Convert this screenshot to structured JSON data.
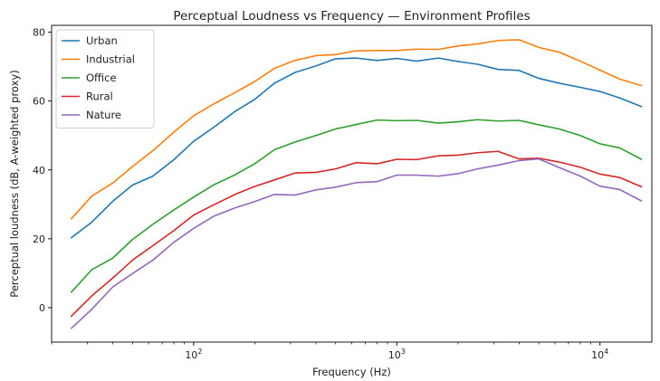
{
  "chart_data": {
    "type": "line",
    "title": "Perceptual Loudness vs Frequency — Environment Profiles",
    "xlabel": "Frequency (Hz)",
    "ylabel": "Perceptual loudness (dB, A-weighted proxy)",
    "xscale": "log",
    "xlim": [
      20,
      18000
    ],
    "ylim": [
      -10,
      82
    ],
    "x_ticks": [
      100,
      1000,
      10000
    ],
    "x_tick_labels": [
      {
        "base": "10",
        "exp": "2"
      },
      {
        "base": "10",
        "exp": "3"
      },
      {
        "base": "10",
        "exp": "4"
      }
    ],
    "y_ticks": [
      0,
      20,
      40,
      60,
      80
    ],
    "y_tick_labels": [
      "0",
      "20",
      "40",
      "60",
      "80"
    ],
    "grid": false,
    "legend_position": "top-left",
    "x": [
      25,
      31.5,
      40,
      50,
      63,
      80,
      100,
      125,
      160,
      200,
      250,
      315,
      400,
      500,
      630,
      800,
      1000,
      1250,
      1600,
      2000,
      2500,
      3150,
      4000,
      5000,
      6300,
      8000,
      10000,
      12500,
      16000
    ],
    "series": [
      {
        "name": "Urban",
        "color": "#1f77b4",
        "values": [
          20.3,
          24.8,
          30.9,
          35.6,
          38.2,
          43.0,
          48.3,
          52.3,
          57.0,
          60.5,
          65.2,
          68.3,
          70.2,
          72.3,
          72.5,
          71.8,
          72.4,
          71.6,
          72.5,
          71.5,
          70.7,
          69.2,
          68.9,
          66.6,
          65.2,
          64.0,
          62.8,
          60.9,
          58.4
        ]
      },
      {
        "name": "Industrial",
        "color": "#ff7f0e",
        "values": [
          25.8,
          32.4,
          36.2,
          41.0,
          45.6,
          51.0,
          55.7,
          59.1,
          62.5,
          65.7,
          69.5,
          71.8,
          73.2,
          73.5,
          74.6,
          74.7,
          74.7,
          75.1,
          75.0,
          76.0,
          76.6,
          77.6,
          77.8,
          75.6,
          74.2,
          71.6,
          69.0,
          66.4,
          64.5
        ]
      },
      {
        "name": "Office",
        "color": "#2ca02c",
        "values": [
          4.5,
          11.0,
          14.4,
          19.8,
          24.2,
          28.4,
          32.1,
          35.6,
          38.6,
          41.8,
          45.9,
          48.1,
          50.0,
          51.9,
          53.2,
          54.5,
          54.3,
          54.4,
          53.6,
          54.0,
          54.6,
          54.2,
          54.4,
          53.1,
          51.9,
          50.0,
          47.6,
          46.4,
          43.1
        ]
      },
      {
        "name": "Rural",
        "color": "#d62728",
        "values": [
          -2.5,
          3.4,
          8.6,
          13.8,
          18.0,
          22.4,
          26.9,
          29.8,
          32.9,
          35.2,
          37.1,
          39.1,
          39.3,
          40.3,
          42.1,
          41.8,
          43.1,
          43.0,
          44.1,
          44.3,
          45.0,
          45.4,
          43.2,
          43.4,
          42.3,
          40.8,
          38.8,
          37.8,
          35.1
        ]
      },
      {
        "name": "Nature",
        "color": "#9467bd",
        "values": [
          -6.0,
          -0.5,
          6.0,
          9.9,
          13.8,
          19.0,
          23.0,
          26.5,
          29.0,
          30.8,
          32.9,
          32.7,
          34.2,
          35.0,
          36.3,
          36.6,
          38.5,
          38.5,
          38.2,
          38.9,
          40.3,
          41.4,
          42.7,
          43.2,
          40.7,
          38.2,
          35.3,
          34.3,
          31.0
        ]
      }
    ]
  }
}
